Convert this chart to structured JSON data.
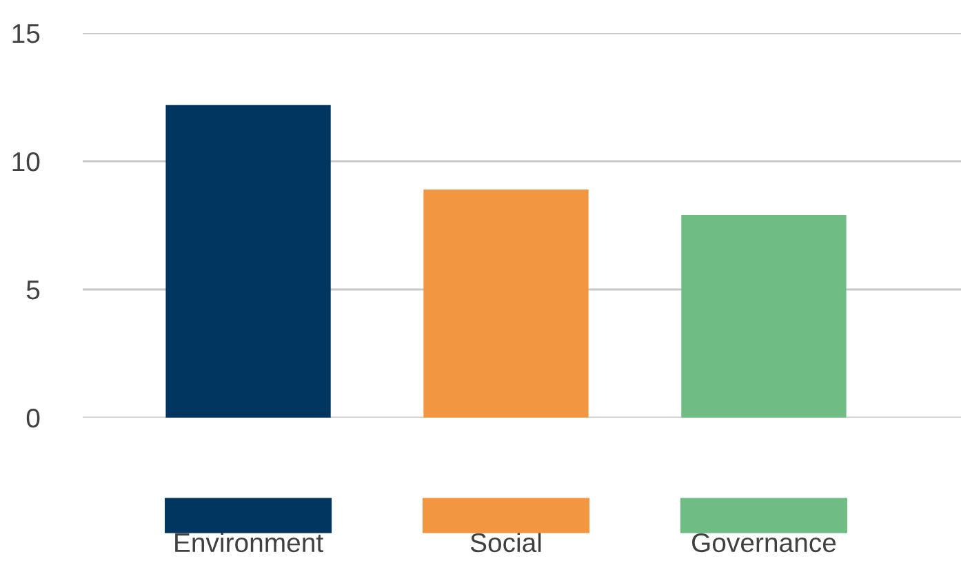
{
  "chart_data": {
    "type": "bar",
    "categories": [
      "Environment",
      "Social",
      "Governance"
    ],
    "values": [
      12.2,
      8.9,
      7.9
    ],
    "colors": [
      "#003660",
      "#f39642",
      "#6fbd84"
    ],
    "ylim": [
      0,
      15
    ],
    "yticks": [
      0,
      5,
      10,
      15
    ],
    "grid": "y"
  }
}
